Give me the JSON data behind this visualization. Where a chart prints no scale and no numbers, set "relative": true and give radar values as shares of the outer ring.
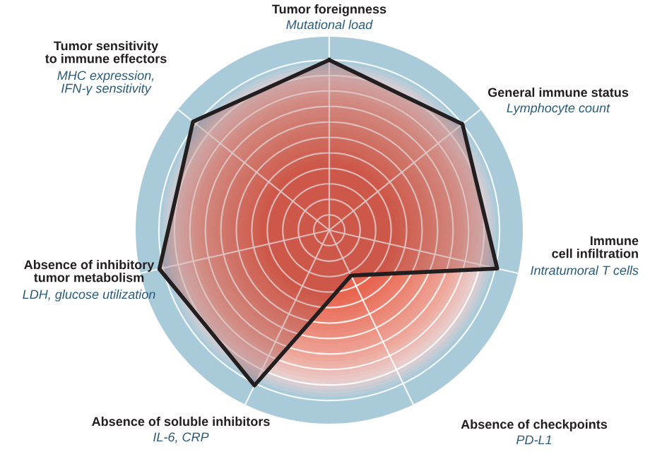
{
  "chart_data": {
    "type": "radar",
    "relative": true,
    "grid": true,
    "categories": [
      "Tumor foreignness",
      "General immune status",
      "Immune\ncell infiltration",
      "Absence of checkpoints",
      "Absence of soluble inhibitors",
      "Absence of inhibitory\ntumor metabolism",
      "Tumor sensitivity\nto immune effectors"
    ],
    "annotations": [
      "Mutational load",
      "Lymphocyte count",
      "Intratumoral T cells",
      "PD-L1",
      "IL-6, CRP",
      "LDH, glucose utilization",
      "MHC expression,\nIFN-γ sensitivity"
    ],
    "series": [
      {
        "color": "#231f20",
        "values": [
          0.88,
          0.88,
          0.89,
          0.26,
          0.89,
          0.9,
          0.9
        ]
      }
    ]
  }
}
